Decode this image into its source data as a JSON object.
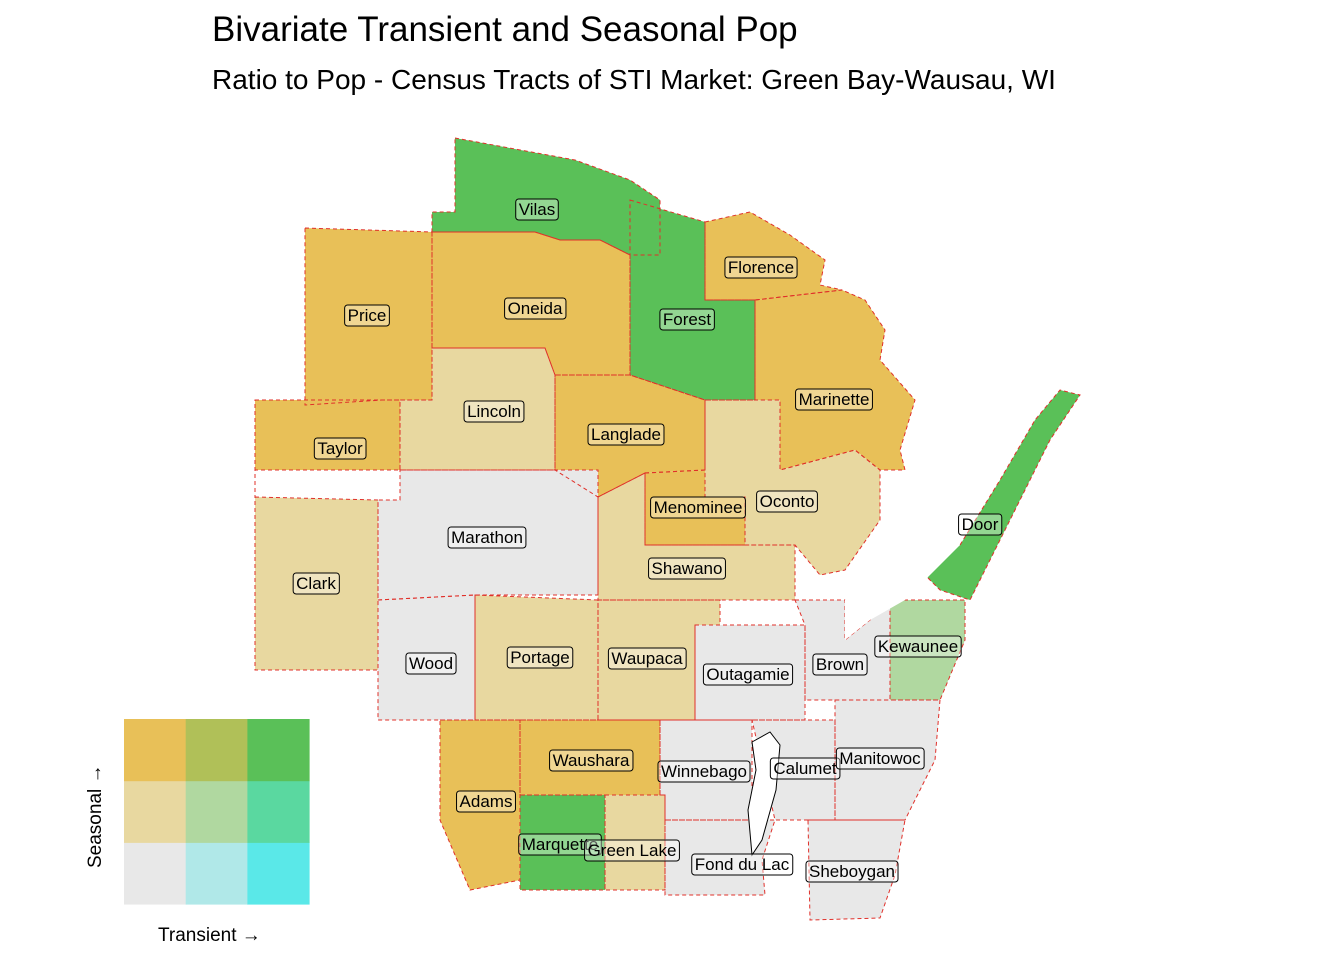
{
  "title": "Bivariate Transient and Seasonal Pop",
  "subtitle": "Ratio to Pop - Census Tracts of STI Market: Green Bay-Wausau, WI",
  "legend": {
    "x_label": "Transient →",
    "y_label": "Seasonal →",
    "colors": [
      [
        "#e8e8e8",
        "#b0e8e8",
        "#5ae8e8"
      ],
      [
        "#e8d8a0",
        "#b0d8a0",
        "#5ad8a0"
      ],
      [
        "#e8c058",
        "#b0c058",
        "#5ac058"
      ]
    ]
  },
  "colors": {
    "low": "#e8e8e8",
    "seasonal_mid": "#e8d8a0",
    "seasonal_high": "#e8c058",
    "transient_mid": "#b0e8e8",
    "transient_high": "#5ae8e8",
    "both_high": "#5ac058",
    "mid_mid": "#b0d8a0",
    "county_border": "#e0302a"
  },
  "counties": [
    {
      "name": "Vilas",
      "fill": "both_high"
    },
    {
      "name": "Florence",
      "fill": "seasonal_high"
    },
    {
      "name": "Price",
      "fill": "seasonal_high"
    },
    {
      "name": "Oneida",
      "fill": "seasonal_high"
    },
    {
      "name": "Forest",
      "fill": "both_high"
    },
    {
      "name": "Marinette",
      "fill": "seasonal_high"
    },
    {
      "name": "Lincoln",
      "fill": "seasonal_mid"
    },
    {
      "name": "Taylor",
      "fill": "seasonal_high"
    },
    {
      "name": "Langlade",
      "fill": "seasonal_high"
    },
    {
      "name": "Menominee",
      "fill": "seasonal_high"
    },
    {
      "name": "Oconto",
      "fill": "seasonal_mid"
    },
    {
      "name": "Door",
      "fill": "both_high"
    },
    {
      "name": "Marathon",
      "fill": "low"
    },
    {
      "name": "Shawano",
      "fill": "seasonal_mid"
    },
    {
      "name": "Clark",
      "fill": "seasonal_mid"
    },
    {
      "name": "Kewaunee",
      "fill": "mid_mid"
    },
    {
      "name": "Wood",
      "fill": "low"
    },
    {
      "name": "Portage",
      "fill": "seasonal_mid"
    },
    {
      "name": "Waupaca",
      "fill": "seasonal_mid"
    },
    {
      "name": "Outagamie",
      "fill": "low"
    },
    {
      "name": "Brown",
      "fill": "low"
    },
    {
      "name": "Waushara",
      "fill": "seasonal_high"
    },
    {
      "name": "Winnebago",
      "fill": "low"
    },
    {
      "name": "Calumet",
      "fill": "low"
    },
    {
      "name": "Manitowoc",
      "fill": "low"
    },
    {
      "name": "Adams",
      "fill": "seasonal_high"
    },
    {
      "name": "Marquette",
      "fill": "both_high"
    },
    {
      "name": "Green Lake",
      "fill": "seasonal_mid"
    },
    {
      "name": "Fond du Lac",
      "fill": "low"
    },
    {
      "name": "Sheboygan",
      "fill": "low"
    }
  ]
}
